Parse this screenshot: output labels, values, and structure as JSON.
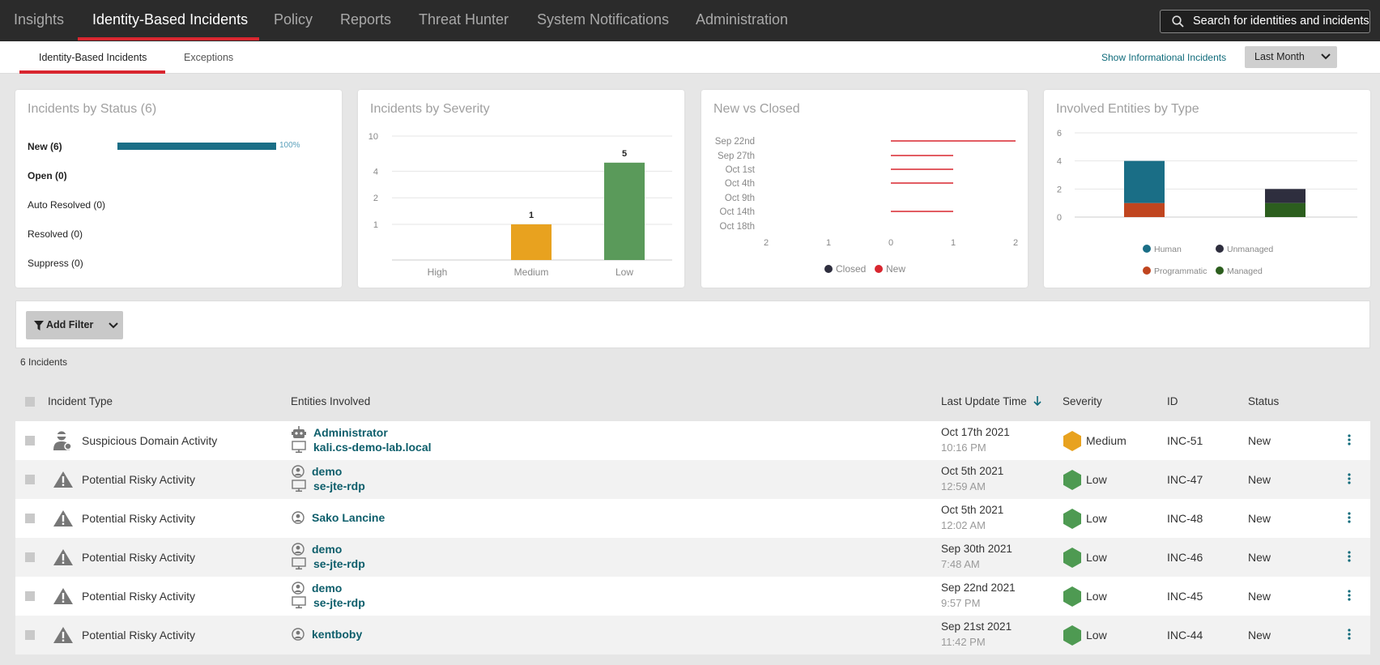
{
  "nav": {
    "items": [
      "Insights",
      "Identity-Based Incidents",
      "Policy",
      "Reports",
      "Threat Hunter",
      "System Notifications",
      "Administration"
    ],
    "active_index": 1,
    "search_placeholder": "Search for identities and incidents"
  },
  "subnav": {
    "tabs": [
      "Identity-Based Incidents",
      "Exceptions"
    ],
    "show_informational": "Show Informational Incidents",
    "period": "Last Month"
  },
  "cards": {
    "status": {
      "title": "Incidents by Status (6)",
      "rows": [
        "New (6)",
        "Open (0)",
        "Auto Resolved (0)",
        "Resolved (0)",
        "Suppress (0)"
      ],
      "new_pct_label": "100%",
      "new_pct": 1.0
    },
    "severity": {
      "title": "Incidents by Severity"
    },
    "newclosed": {
      "title": "New vs Closed"
    },
    "entities": {
      "title": "Involved Entities by Type"
    }
  },
  "chart_data": [
    {
      "type": "bar",
      "title": "Incidents by Severity",
      "categories": [
        "High",
        "Medium",
        "Low"
      ],
      "values": [
        0,
        1,
        5
      ],
      "colors": [
        "#e8a21f",
        "#e8a21f",
        "#5a9a5a"
      ],
      "data_labels": [
        "",
        "1",
        "5"
      ],
      "y_ticks": [
        "10",
        "4",
        "2",
        "1"
      ],
      "log_scale": true
    },
    {
      "type": "bar",
      "title": "New vs Closed",
      "orientation": "horizontal",
      "categories": [
        "Sep 22nd",
        "Sep 27th",
        "Oct 1st",
        "Oct 4th",
        "Oct 9th",
        "Oct 14th",
        "Oct 18th"
      ],
      "x_ticks": [
        "2",
        "1",
        "0",
        "1",
        "2"
      ],
      "series": [
        {
          "name": "Closed",
          "color": "#2e2e3e",
          "values": [
            0,
            0,
            0,
            0,
            0,
            0,
            0
          ]
        },
        {
          "name": "New",
          "color": "#d8262f",
          "values": [
            2,
            1,
            1,
            1,
            0,
            1,
            0
          ]
        }
      ]
    },
    {
      "type": "bar",
      "title": "Involved Entities by Type",
      "stacked": true,
      "y_ticks": [
        "6",
        "4",
        "2",
        "0"
      ],
      "ylim": [
        0,
        6
      ],
      "stacks": [
        {
          "segments": [
            {
              "name": "Programmatic",
              "value": 1
            },
            {
              "name": "Human",
              "value": 3
            }
          ]
        },
        {
          "segments": [
            {
              "name": "Managed",
              "value": 1
            },
            {
              "name": "Unmanaged",
              "value": 1
            }
          ]
        }
      ],
      "legend": [
        {
          "name": "Human",
          "color": "#1a6e86"
        },
        {
          "name": "Unmanaged",
          "color": "#2e2e3e"
        },
        {
          "name": "Programmatic",
          "color": "#c0451f"
        },
        {
          "name": "Managed",
          "color": "#2c5e1e"
        }
      ]
    }
  ],
  "filter": {
    "add_label": "Add Filter",
    "count_label": "6 Incidents"
  },
  "table": {
    "headers": [
      "Incident Type",
      "Entities Involved",
      "Last Update Time",
      "Severity",
      "ID",
      "Status"
    ],
    "rows": [
      {
        "type": "Suspicious Domain Activity",
        "icon": "suspicious-user-icon",
        "entities": [
          {
            "name": "Administrator",
            "icon": "robot-icon"
          },
          {
            "name": "kali.cs-demo-lab.local",
            "icon": "computer-icon"
          }
        ],
        "date": "Oct 17th 2021",
        "time": "10:16 PM",
        "severity": "Medium",
        "sev_color": "#e8a21f",
        "id": "INC-51",
        "status": "New"
      },
      {
        "type": "Potential Risky Activity",
        "icon": "warning-icon",
        "entities": [
          {
            "name": "demo",
            "icon": "user-icon"
          },
          {
            "name": "se-jte-rdp",
            "icon": "computer-icon"
          }
        ],
        "date": "Oct 5th 2021",
        "time": "12:59 AM",
        "severity": "Low",
        "sev_color": "#4e9a52",
        "id": "INC-47",
        "status": "New"
      },
      {
        "type": "Potential Risky Activity",
        "icon": "warning-icon",
        "entities": [
          {
            "name": "Sako Lancine",
            "icon": "user-icon"
          }
        ],
        "date": "Oct 5th 2021",
        "time": "12:02 AM",
        "severity": "Low",
        "sev_color": "#4e9a52",
        "id": "INC-48",
        "status": "New"
      },
      {
        "type": "Potential Risky Activity",
        "icon": "warning-icon",
        "entities": [
          {
            "name": "demo",
            "icon": "user-icon"
          },
          {
            "name": "se-jte-rdp",
            "icon": "computer-icon"
          }
        ],
        "date": "Sep 30th 2021",
        "time": "7:48 AM",
        "severity": "Low",
        "sev_color": "#4e9a52",
        "id": "INC-46",
        "status": "New"
      },
      {
        "type": "Potential Risky Activity",
        "icon": "warning-icon",
        "entities": [
          {
            "name": "demo",
            "icon": "user-icon"
          },
          {
            "name": "se-jte-rdp",
            "icon": "computer-icon"
          }
        ],
        "date": "Sep 22nd 2021",
        "time": "9:57 PM",
        "severity": "Low",
        "sev_color": "#4e9a52",
        "id": "INC-45",
        "status": "New"
      },
      {
        "type": "Potential Risky Activity",
        "icon": "warning-icon",
        "entities": [
          {
            "name": "kentboby",
            "icon": "user-icon"
          }
        ],
        "date": "Sep 21st 2021",
        "time": "11:42 PM",
        "severity": "Low",
        "sev_color": "#4e9a52",
        "id": "INC-44",
        "status": "New"
      }
    ]
  }
}
